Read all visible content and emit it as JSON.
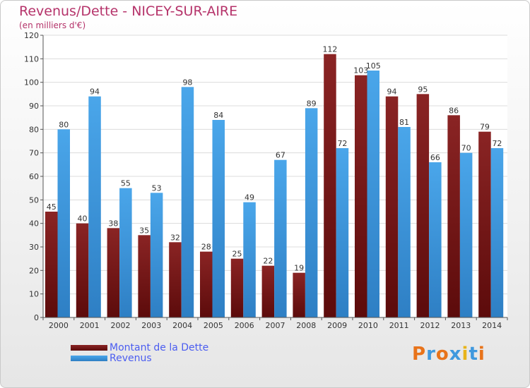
{
  "title": "Revenus/Dette - NICEY-SUR-AIRE",
  "subtitle": "(en milliers d'€)",
  "logo_text": "Proxiti",
  "colors": {
    "dette": "#7a1a1a",
    "revenus": "#3f99de",
    "title": "#b5336a",
    "legend_text": "#4b5df0"
  },
  "chart_data": {
    "type": "bar",
    "title": "Revenus/Dette - NICEY-SUR-AIRE",
    "ylabel": "(en milliers d'€)",
    "categories": [
      "2000",
      "2001",
      "2002",
      "2003",
      "2004",
      "2005",
      "2006",
      "2007",
      "2008",
      "2009",
      "2010",
      "2011",
      "2012",
      "2013",
      "2014"
    ],
    "series": [
      {
        "name": "Montant de la Dette",
        "values": [
          45,
          40,
          38,
          35,
          32,
          28,
          25,
          22,
          19,
          112,
          103,
          94,
          95,
          86,
          79
        ]
      },
      {
        "name": "Revenus",
        "values": [
          80,
          94,
          55,
          53,
          98,
          84,
          49,
          67,
          89,
          72,
          105,
          81,
          66,
          70,
          72
        ]
      }
    ],
    "ylim": [
      0,
      120
    ],
    "yticks": [
      0,
      10,
      20,
      30,
      40,
      50,
      60,
      70,
      80,
      90,
      100,
      110,
      120
    ],
    "grid": true,
    "legend_position": "bottom-left"
  }
}
